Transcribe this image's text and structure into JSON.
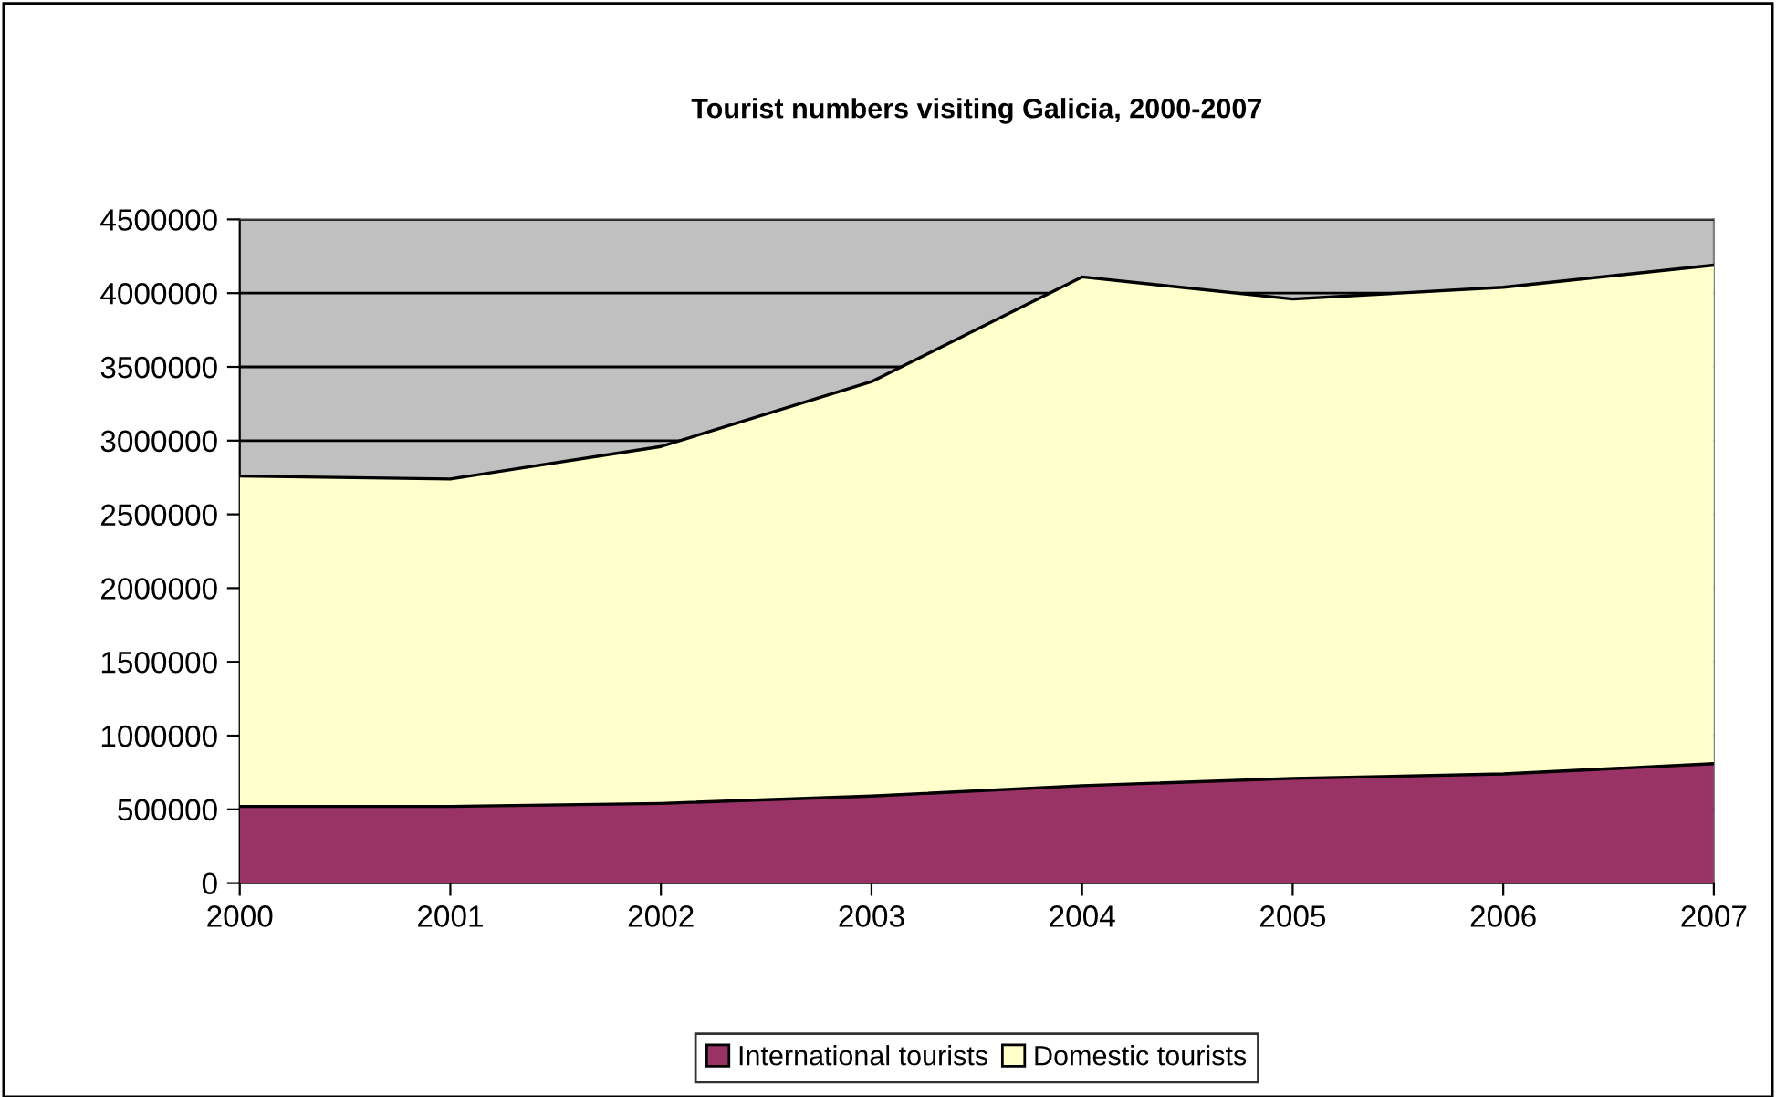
{
  "chart_data": {
    "type": "area",
    "stacked": true,
    "title": "Tourist numbers visiting Galicia, 2000-2007",
    "categories": [
      "2000",
      "2001",
      "2002",
      "2003",
      "2004",
      "2005",
      "2006",
      "2007"
    ],
    "series": [
      {
        "name": "International tourists",
        "color": "#993366",
        "values": [
          520000,
          520000,
          540000,
          590000,
          660000,
          710000,
          740000,
          810000
        ]
      },
      {
        "name": "Domestic tourists",
        "color": "#ffffcc",
        "values": [
          2240000,
          2220000,
          2420000,
          2810000,
          3450000,
          3250000,
          3300000,
          3380000
        ]
      }
    ],
    "ylim": [
      0,
      4500000
    ],
    "yticks": [
      0,
      500000,
      1000000,
      1500000,
      2000000,
      2500000,
      3000000,
      3500000,
      4000000,
      4500000
    ],
    "grid": "y",
    "legend": "bottom"
  }
}
